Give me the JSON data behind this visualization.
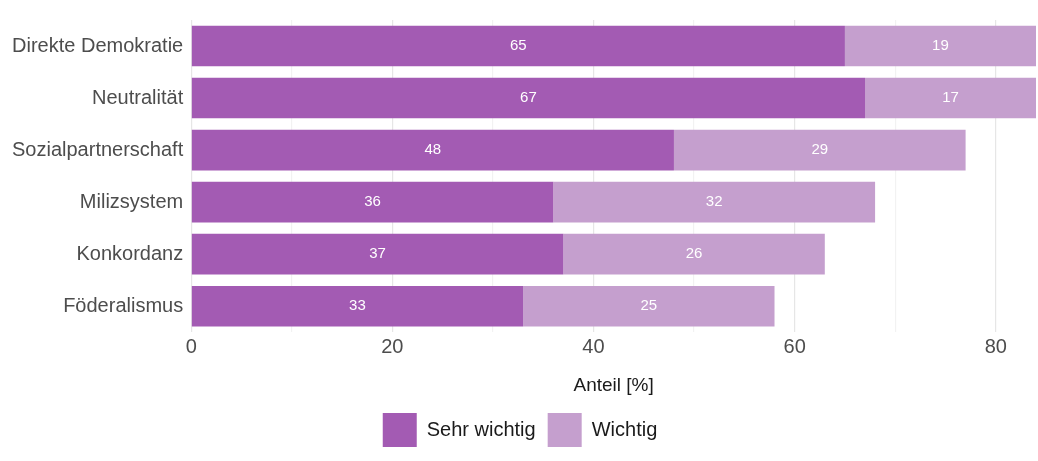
{
  "chart_data": {
    "type": "bar",
    "orientation": "horizontal",
    "stacked": true,
    "categories": [
      "Direkte Demokratie",
      "Neutralität",
      "Sozialpartnerschaft",
      "Milizsystem",
      "Konkordanz",
      "Föderalismus"
    ],
    "series": [
      {
        "name": "Sehr wichtig",
        "color": "#a35bb3",
        "values": [
          65,
          67,
          48,
          36,
          37,
          33
        ]
      },
      {
        "name": "Wichtig",
        "color": "#c59fce",
        "values": [
          19,
          17,
          29,
          32,
          26,
          25
        ]
      }
    ],
    "xlim": [
      0,
      84
    ],
    "xticks": [
      0,
      {
        "value": 10,
        "label": null
      },
      20,
      {
        "value": 30,
        "label": null
      },
      40,
      {
        "value": 50,
        "label": null
      },
      60,
      {
        "value": 70,
        "label": null
      },
      80
    ],
    "xlabel": "Anteil [%]",
    "grid": "x",
    "legend": "bottom",
    "data_labels": true
  }
}
